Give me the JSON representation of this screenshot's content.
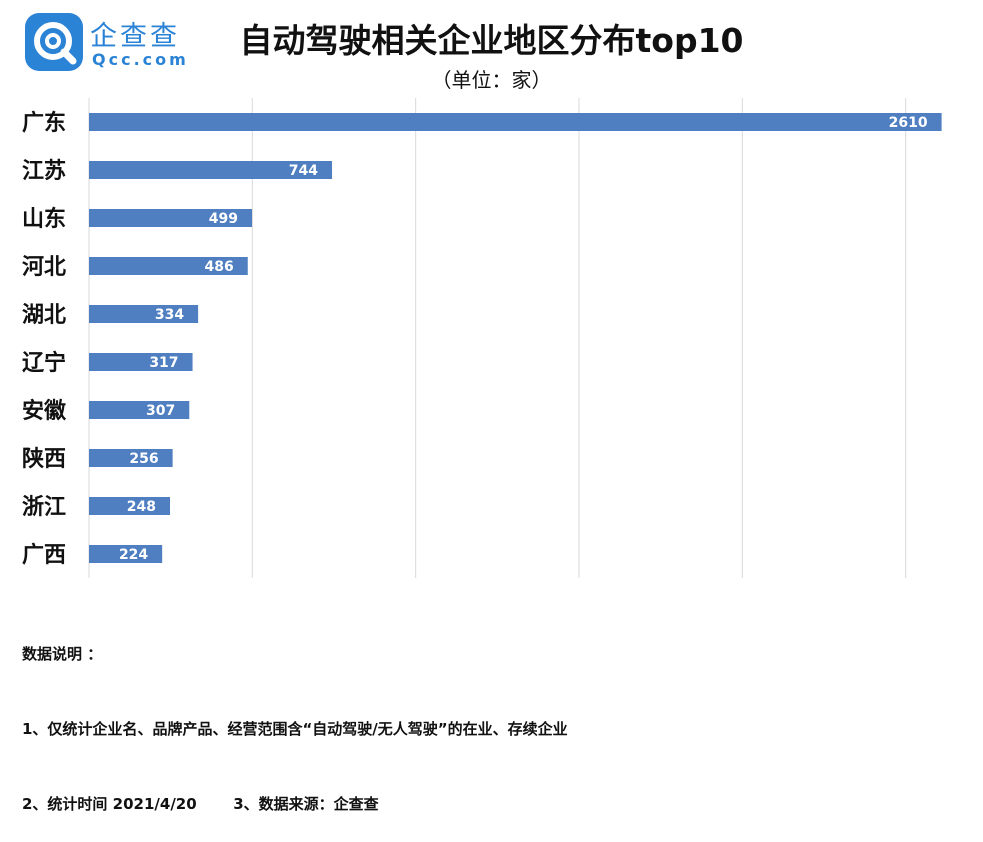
{
  "brand": {
    "name_cn": "企查查",
    "name_en": "Qcc.com",
    "color": "#2b83d6"
  },
  "header": {
    "title": "自动驾驶相关企业地区分布top10",
    "unit": "（单位：家）"
  },
  "chart_data": {
    "type": "bar",
    "orientation": "horizontal",
    "categories": [
      "广东",
      "江苏",
      "山东",
      "河北",
      "湖北",
      "辽宁",
      "安徽",
      "陕西",
      "浙江",
      "广西"
    ],
    "values": [
      2610,
      744,
      499,
      486,
      334,
      317,
      307,
      256,
      248,
      224
    ],
    "data_labels": true,
    "bar_color": "#4f7fc1",
    "xlim": [
      0,
      2700
    ],
    "grid": true
  },
  "notes": {
    "heading": "数据说明 ：",
    "line1": "1、仅统计企业名、品牌产品、经营范围含“自动驾驶/无人驾驶”的在业、存续企业",
    "line2": "2、统计时间 2021/4/20       3、数据来源：企查查"
  }
}
